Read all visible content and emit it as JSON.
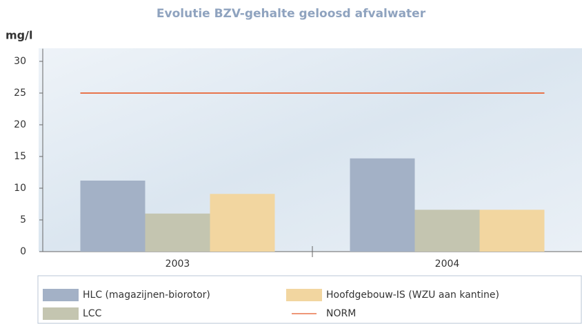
{
  "chart_data": {
    "type": "bar",
    "title": "Evolutie BZV-gehalte geloosd afvalwater",
    "y_label": "mg/l",
    "categories": [
      "2003",
      "2004"
    ],
    "series": [
      {
        "name": "HLC (magazijnen-biorotor)",
        "color": "#a3b1c6",
        "values": [
          11.2,
          14.7
        ]
      },
      {
        "name": "LCC",
        "color": "#c4c5b0",
        "values": [
          6.0,
          6.6
        ]
      },
      {
        "name": "Hoofdgebouw-IS (WZU aan kantine)",
        "color": "#f2d6a0",
        "values": [
          9.1,
          6.6
        ]
      },
      {
        "name": "NORM",
        "type": "line",
        "color": "#e8734a",
        "values": [
          25,
          25
        ]
      }
    ],
    "ylim": [
      0,
      32
    ],
    "yticks": [
      0,
      5,
      10,
      15,
      20,
      25,
      30
    ]
  }
}
